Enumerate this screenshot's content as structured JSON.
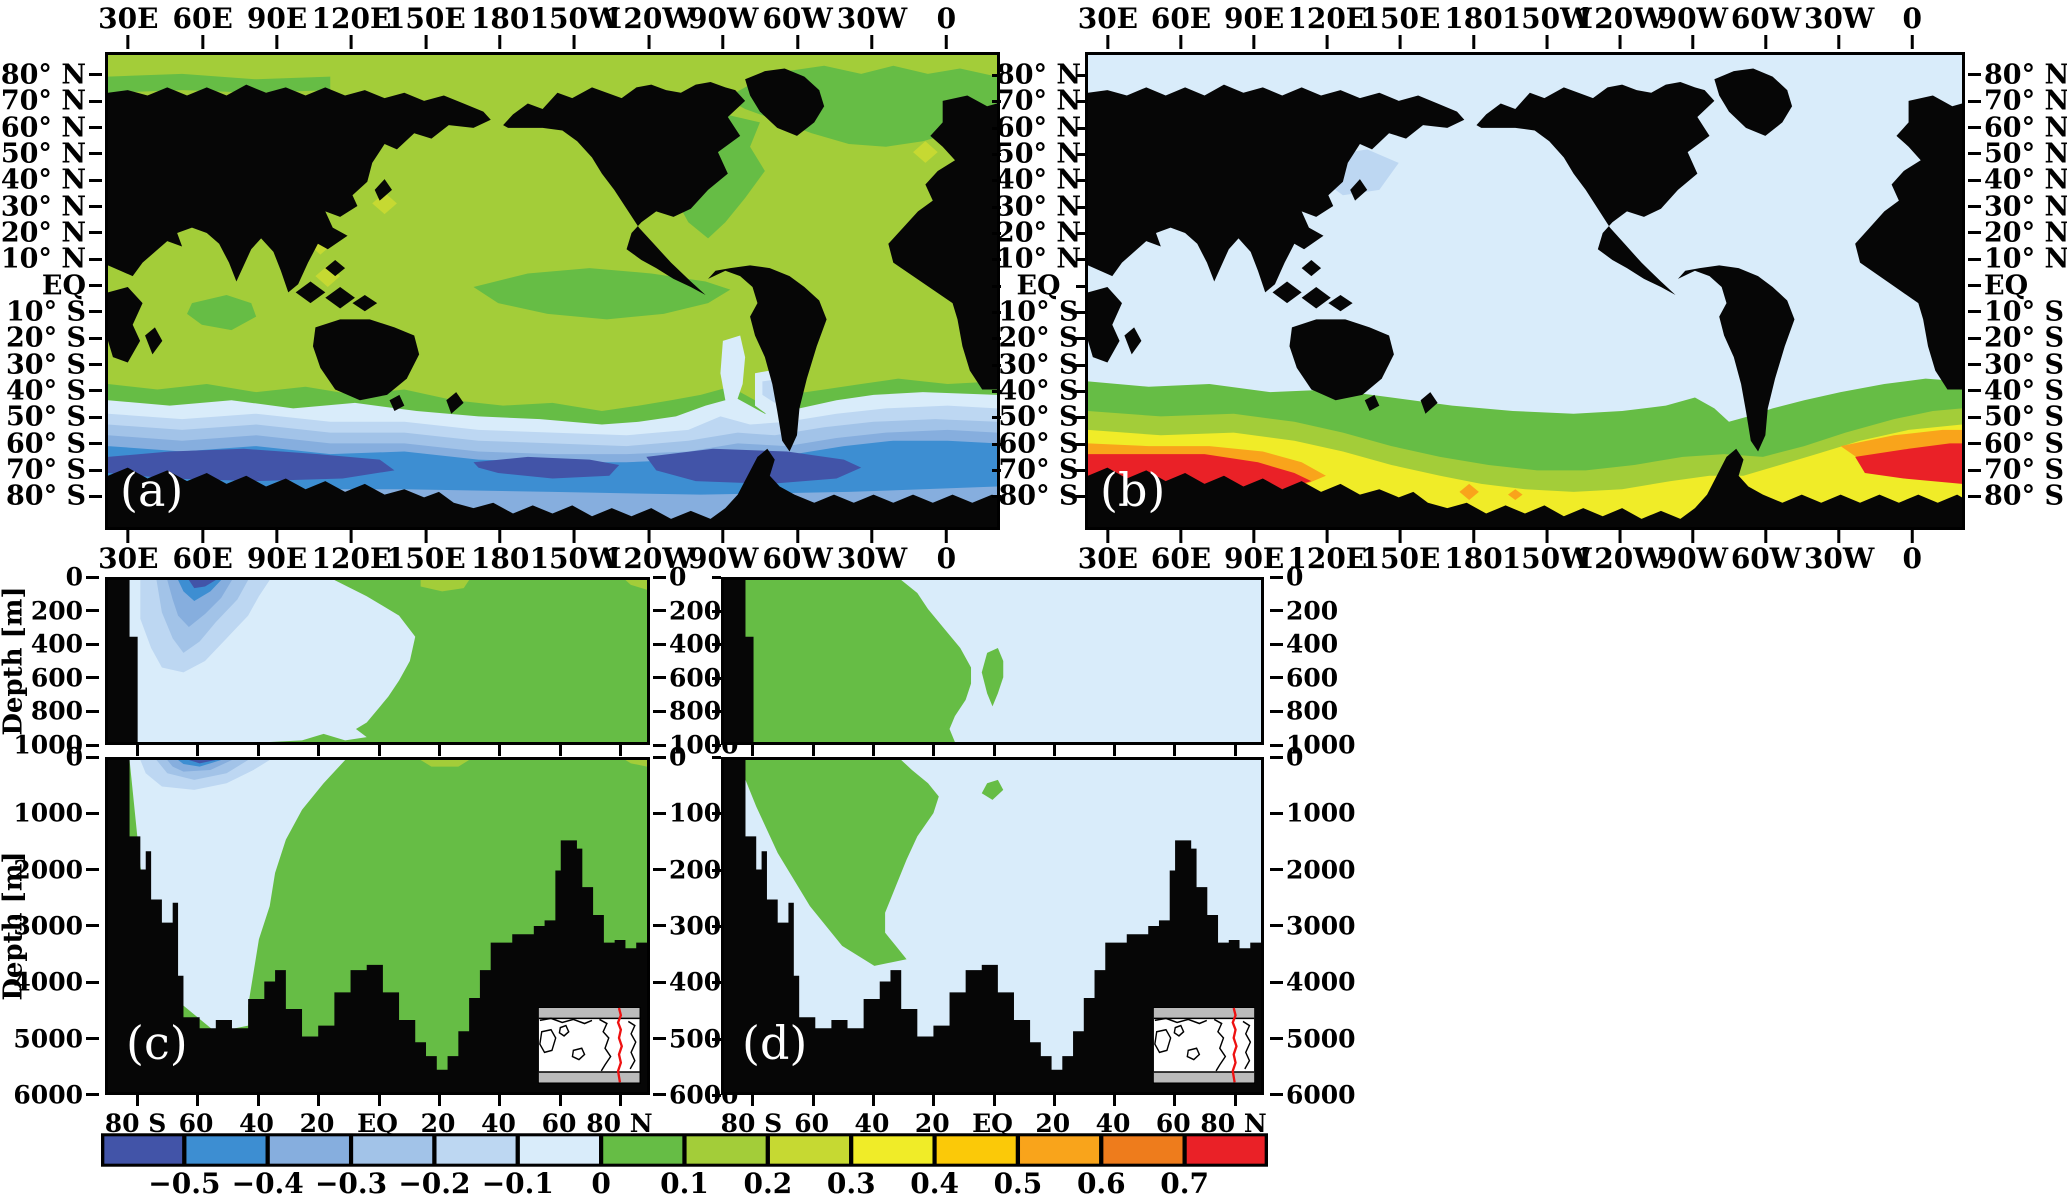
{
  "figure": {
    "panel_tags": {
      "a": "(a)",
      "b": "(b)",
      "c": "(c)",
      "d": "(d)"
    },
    "map_axes": {
      "lon_labels": [
        "30E",
        "60E",
        "90E",
        "120E",
        "150E",
        "180",
        "150W",
        "120W",
        "90W",
        "60W",
        "30W",
        "0"
      ],
      "lat_labels": [
        "80° N",
        "70° N",
        "60° N",
        "50° N",
        "40° N",
        "30° N",
        "20° N",
        "10° N",
        "EQ",
        "10° S",
        "20° S",
        "30° S",
        "40° S",
        "50° S",
        "60° S",
        "70° S",
        "80° S"
      ]
    },
    "section_axes": {
      "depth_label": "Depth [m]",
      "upper_depth_labels": [
        "0",
        "200",
        "400",
        "600",
        "800",
        "1000"
      ],
      "lower_depth_labels": [
        "0",
        "1000",
        "2000",
        "3000",
        "4000",
        "5000",
        "6000"
      ],
      "lat_labels": [
        "80 S",
        "60",
        "40",
        "20",
        "EQ",
        "20",
        "40",
        "60",
        "80 N"
      ]
    },
    "colorbar": {
      "tick_labels": [
        "−0.5",
        "−0.4",
        "−0.3",
        "−0.2",
        "−0.1",
        "0",
        "0.1",
        "0.2",
        "0.3",
        "0.4",
        "0.5",
        "0.6",
        "0.7"
      ],
      "cell_colors": [
        "#4254a8",
        "#3d8ed2",
        "#86aede",
        "#a2c3e8",
        "#bdd7f2",
        "#d9ecfa",
        "#66bd45",
        "#a3cd39",
        "#c6d932",
        "#f0ec28",
        "#fbc908",
        "#f9a41b",
        "#ee7c1c",
        "#ea2127"
      ]
    },
    "colors": {
      "land": "#060606",
      "frame": "#000000",
      "inset_land_gray": "#bbbbbb",
      "inset_ocean": "#ffffff",
      "section_line_red": "#ee1111",
      "tag_text": "#ffffff"
    }
  },
  "chart_data": {
    "type": "heatmap",
    "figure_kind": "Four-panel filled-contour figure: two global lat-lon difference maps (a, b) and two latitude-depth ocean sections (c, d), all sharing one discrete color scale from -0.5 to 0.7",
    "color_scale": {
      "tick_values": [
        -0.5,
        -0.4,
        -0.3,
        -0.2,
        -0.1,
        0,
        0.1,
        0.2,
        0.3,
        0.4,
        0.5,
        0.6,
        0.7
      ],
      "n_cells": 14,
      "cell_colors": [
        "#4254a8",
        "#3d8ed2",
        "#86aede",
        "#a2c3e8",
        "#bdd7f2",
        "#d9ecfa",
        "#66bd45",
        "#a3cd39",
        "#c6d932",
        "#f0ec28",
        "#fbc908",
        "#f9a41b",
        "#ee7c1c",
        "#ea2127"
      ],
      "cell_ranges": [
        "< -0.5",
        "-0.5 to -0.4",
        "-0.4 to -0.3",
        "-0.3 to -0.2",
        "-0.2 to -0.1",
        "-0.1 to 0",
        "0 to 0.1",
        "0.1 to 0.2",
        "0.2 to 0.3",
        "0.3 to 0.4",
        "0.4 to 0.5",
        "0.5 to 0.6",
        "0.6 to 0.7",
        "> 0.7"
      ]
    },
    "panels": [
      {
        "id": "a",
        "kind": "global lat-lon map, longitude starts at 30E",
        "x_ticks": [
          "30E",
          "60E",
          "90E",
          "120E",
          "150E",
          "180",
          "150W",
          "120W",
          "90W",
          "60W",
          "30W",
          "0"
        ],
        "y_ticks": [
          "80N",
          "70N",
          "60N",
          "50N",
          "40N",
          "30N",
          "20N",
          "10N",
          "EQ",
          "10S",
          "20S",
          "30S",
          "40S",
          "50S",
          "60S",
          "70S",
          "80S"
        ],
        "values_by_region": {
          "most_of_global_ocean": 0.15,
          "arctic_nordic_seas_and_labrador_patches": 0.05,
          "western_north_atlantic_along_coast": 0.05,
          "equatorial_east_pacific_tongue": 0.05,
          "small_spots_west_pacific_and_55N_atlantic": 0.25,
          "southern_ocean_38S_to_48S": -0.15,
          "southern_ocean_48S_to_62S": -0.35,
          "southern_ocean_core_50S_to_60S": -0.5,
          "land": "masked black"
        }
      },
      {
        "id": "b",
        "kind": "global lat-lon map, longitude starts at 30E",
        "x_ticks": [
          "30E",
          "60E",
          "90E",
          "120E",
          "150E",
          "180",
          "150W",
          "120W",
          "90W",
          "60W",
          "30W",
          "0"
        ],
        "y_ticks": [
          "80N",
          "70N",
          "60N",
          "50N",
          "40N",
          "30N",
          "20N",
          "10N",
          "EQ",
          "10S",
          "20S",
          "30S",
          "40S",
          "50S",
          "60S",
          "70S",
          "80S"
        ],
        "values_by_region": {
          "most_of_global_ocean": -0.05,
          "southern_ocean_38S_to_55S_band": 0.05,
          "band_50S_to_60S": 0.2,
          "band_58S_to_65S": 0.35,
          "antarctic_coast_indian_sector_30E_150E": 0.75,
          "antarctic_coast_atlantic_sector_30W_20E": 0.75,
          "antarctic_coast_pacific_sector": 0.35,
          "land": "masked black"
        }
      },
      {
        "id": "c",
        "kind": "latitude-depth section, two stacked sub-panels (0-1000 m zoom and 0-6000 m full depth)",
        "x_ticks": [
          "80 S",
          "60",
          "40",
          "20",
          "EQ",
          "20",
          "40",
          "60",
          "80 N"
        ],
        "depth_ticks_upper_m": [
          0,
          200,
          400,
          600,
          800,
          1000
        ],
        "depth_ticks_lower_m": [
          0,
          1000,
          2000,
          3000,
          4000,
          5000,
          6000
        ],
        "values_by_region": {
          "south_of_45S_upper_1000m": -0.15,
          "55S_to_62S_surface_0_to_600m_core": -0.45,
          "mid_depth_south_of_40S_to_4700m": -0.05,
          "north_of_30S_all_depths": 0.05,
          "small_surface_spot_near_20N": 0.15,
          "seafloor_bathymetry": "masked black"
        },
        "inset": "small world locator map with red meridional (Atlantic) section track"
      },
      {
        "id": "d",
        "kind": "latitude-depth section, two stacked sub-panels (0-1000 m zoom and 0-6000 m full depth)",
        "x_ticks": [
          "80 S",
          "60",
          "40",
          "20",
          "EQ",
          "20",
          "40",
          "60",
          "80 N"
        ],
        "depth_ticks_upper_m": [
          0,
          200,
          400,
          600,
          800,
          1000
        ],
        "depth_ticks_lower_m": [
          0,
          1000,
          2000,
          3000,
          4000,
          5000,
          6000
        ],
        "values_by_region": {
          "south_of_40S_down_to_3500m": 0.05,
          "north_of_30S_all_depths": -0.05,
          "small_lens_near_5S_450_to_800m": 0.05,
          "seafloor_bathymetry": "masked black"
        },
        "inset": "small world locator map with red meridional (Atlantic) section track"
      }
    ]
  }
}
